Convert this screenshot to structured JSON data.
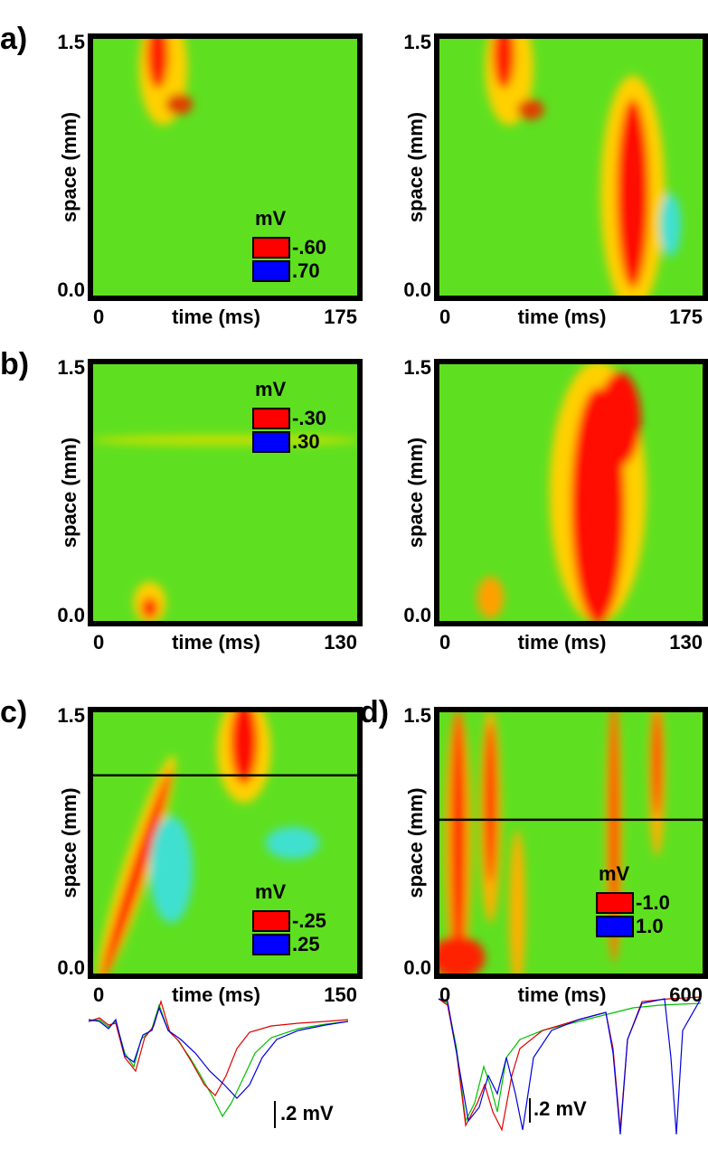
{
  "chart_data": [
    {
      "type": "heatmap",
      "label": "a)",
      "xlabel": "time (ms)",
      "ylabel": "space (mm)",
      "xlim": [
        0,
        175
      ],
      "xticks": [
        0,
        175
      ],
      "ylim": [
        0,
        1.5
      ],
      "yticks": [
        {
          "value": 0,
          "label": "0.0"
        },
        1.5
      ],
      "colorscale": {
        "title": "mV",
        "stops": [
          {
            "value": -0.6,
            "label": "-.60",
            "color": "#ff0000"
          },
          {
            "value": 0.7,
            "label": ".70",
            "color": "#0000ff"
          }
        ]
      }
    },
    {
      "type": "heatmap",
      "xlabel": "time (ms)",
      "ylabel": "space (mm)",
      "xlim": [
        0,
        175
      ],
      "xticks": [
        0,
        175
      ],
      "ylim": [
        0,
        1.5
      ],
      "yticks": [
        {
          "value": 0,
          "label": "0.0"
        },
        1.5
      ]
    },
    {
      "type": "heatmap",
      "label": "b)",
      "xlabel": "time (ms)",
      "ylabel": "space (mm)",
      "xlim": [
        0,
        130
      ],
      "xticks": [
        0,
        130
      ],
      "ylim": [
        0,
        1.5
      ],
      "yticks": [
        {
          "value": 0,
          "label": "0.0"
        },
        1.5
      ],
      "colorscale": {
        "title": "mV",
        "stops": [
          {
            "value": -0.3,
            "label": "-.30",
            "color": "#ff0000"
          },
          {
            "value": 0.3,
            "label": ".30",
            "color": "#0000ff"
          }
        ]
      }
    },
    {
      "type": "heatmap",
      "xlabel": "time (ms)",
      "ylabel": "space (mm)",
      "xlim": [
        0,
        130
      ],
      "xticks": [
        0,
        130
      ],
      "ylim": [
        0,
        1.5
      ],
      "yticks": [
        {
          "value": 0,
          "label": "0.0"
        },
        1.5
      ]
    },
    {
      "type": "heatmap",
      "label": "c)",
      "xlabel": "time (ms)",
      "ylabel": "space (mm)",
      "xlim": [
        0,
        150
      ],
      "xticks": [
        0,
        150
      ],
      "ylim": [
        0,
        1.5
      ],
      "yticks": [
        {
          "value": 0,
          "label": "0.0"
        },
        1.5
      ],
      "hline": 1.13,
      "colorscale": {
        "title": "mV",
        "stops": [
          {
            "value": -0.25,
            "label": "-.25",
            "color": "#ff0000"
          },
          {
            "value": 0.25,
            "label": ".25",
            "color": "#0000ff"
          }
        ]
      },
      "scale_bar": ".2 mV"
    },
    {
      "type": "heatmap",
      "label": "d)",
      "xlabel": "time (ms)",
      "ylabel": "space (mm)",
      "xlim": [
        0,
        600
      ],
      "xticks": [
        0,
        600
      ],
      "ylim": [
        0,
        1.5
      ],
      "yticks": [
        {
          "value": 0,
          "label": "0.0"
        },
        1.5
      ],
      "hline": 0.88,
      "colorscale": {
        "title": "mV",
        "stops": [
          {
            "value": -1.0,
            "label": "-1.0",
            "color": "#ff0000"
          },
          {
            "value": 1.0,
            "label": "1.0",
            "color": "#0000ff"
          }
        ]
      },
      "scale_bar": ".2 mV"
    }
  ]
}
